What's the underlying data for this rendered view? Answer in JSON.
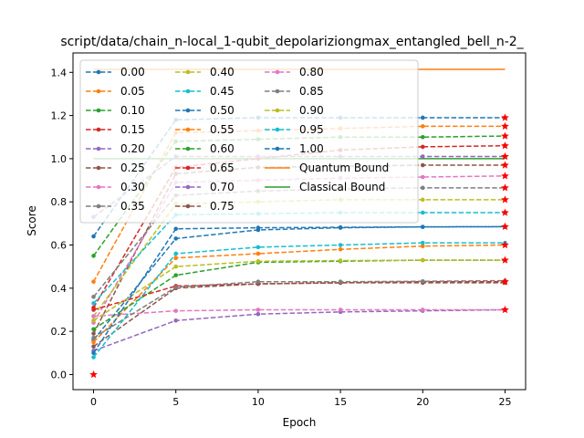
{
  "chart_data": {
    "type": "line",
    "title": "script/data/chain_n-local_1-qubit_depolariziongmax_entangled_bell_n-2_",
    "xlabel": "Epoch",
    "ylabel": "Score",
    "xlim": [
      -1.25,
      26.25
    ],
    "ylim": [
      -0.07,
      1.49
    ],
    "x": [
      0,
      5,
      10,
      15,
      20,
      25
    ],
    "xticks": [
      "0",
      "5",
      "10",
      "15",
      "20",
      "25"
    ],
    "yticks": [
      "0.0",
      "0.2",
      "0.4",
      "0.6",
      "0.8",
      "1.0",
      "1.2",
      "1.4"
    ],
    "grid": false,
    "legend_position": "upper-left, 3 columns",
    "series": [
      {
        "name": "0.00",
        "color": "#1f77b4",
        "values": [
          0.64,
          1.18,
          1.19,
          1.19,
          1.19,
          1.19
        ]
      },
      {
        "name": "0.05",
        "color": "#ff7f0e",
        "values": [
          0.43,
          1.12,
          1.13,
          1.14,
          1.15,
          1.15
        ]
      },
      {
        "name": "0.10",
        "color": "#2ca02c",
        "values": [
          0.55,
          1.08,
          1.09,
          1.1,
          1.1,
          1.105
        ]
      },
      {
        "name": "0.15",
        "color": "#d62728",
        "values": [
          0.31,
          0.96,
          1.0,
          1.04,
          1.055,
          1.06
        ]
      },
      {
        "name": "0.20",
        "color": "#9467bd",
        "values": [
          0.73,
          1.01,
          1.01,
          1.01,
          1.01,
          1.01
        ]
      },
      {
        "name": "0.25",
        "color": "#8c564b",
        "values": [
          0.19,
          0.93,
          0.96,
          0.965,
          0.97,
          0.97
        ]
      },
      {
        "name": "0.30",
        "color": "#e377c2",
        "values": [
          0.24,
          0.89,
          0.9,
          0.91,
          0.915,
          0.92
        ]
      },
      {
        "name": "0.35",
        "color": "#7f7f7f",
        "values": [
          0.36,
          0.83,
          0.85,
          0.86,
          0.865,
          0.865
        ]
      },
      {
        "name": "0.40",
        "color": "#bcbd22",
        "values": [
          0.27,
          0.79,
          0.8,
          0.81,
          0.81,
          0.81
        ]
      },
      {
        "name": "0.45",
        "color": "#17becf",
        "values": [
          0.33,
          0.74,
          0.745,
          0.75,
          0.75,
          0.75
        ]
      },
      {
        "name": "0.50",
        "color": "#1f77b4",
        "values": [
          0.16,
          0.63,
          0.67,
          0.68,
          0.684,
          0.685
        ]
      },
      {
        "name": "0.55",
        "color": "#ff7f0e",
        "values": [
          0.15,
          0.54,
          0.56,
          0.58,
          0.595,
          0.6
        ]
      },
      {
        "name": "0.60",
        "color": "#2ca02c",
        "values": [
          0.21,
          0.46,
          0.52,
          0.525,
          0.53,
          0.53
        ]
      },
      {
        "name": "0.65",
        "color": "#d62728",
        "values": [
          0.3,
          0.41,
          0.42,
          0.425,
          0.43,
          0.43
        ]
      },
      {
        "name": "0.70",
        "color": "#9467bd",
        "values": [
          0.11,
          0.25,
          0.28,
          0.29,
          0.295,
          0.3
        ]
      },
      {
        "name": "0.75",
        "color": "#8c564b",
        "values": [
          0.13,
          0.4,
          0.42,
          0.425,
          0.425,
          0.425
        ]
      },
      {
        "name": "0.80",
        "color": "#e377c2",
        "values": [
          0.27,
          0.295,
          0.3,
          0.3,
          0.3,
          0.3
        ]
      },
      {
        "name": "0.85",
        "color": "#7f7f7f",
        "values": [
          0.17,
          0.405,
          0.43,
          0.43,
          0.432,
          0.435
        ]
      },
      {
        "name": "0.90",
        "color": "#bcbd22",
        "values": [
          0.25,
          0.5,
          0.525,
          0.528,
          0.53,
          0.53
        ]
      },
      {
        "name": "0.95",
        "color": "#17becf",
        "values": [
          0.08,
          0.56,
          0.59,
          0.6,
          0.61,
          0.61
        ]
      },
      {
        "name": "1.00",
        "color": "#1f77b4",
        "values": [
          0.1,
          0.675,
          0.68,
          0.682,
          0.684,
          0.685
        ]
      }
    ],
    "final_markers": {
      "color": "#ff0000",
      "symbol": "star",
      "points": [
        [
          0,
          0.0
        ],
        [
          25,
          1.19
        ],
        [
          25,
          1.15
        ],
        [
          25,
          1.105
        ],
        [
          25,
          1.06
        ],
        [
          25,
          1.01
        ],
        [
          25,
          0.97
        ],
        [
          25,
          0.92
        ],
        [
          25,
          0.865
        ],
        [
          25,
          0.81
        ],
        [
          25,
          0.75
        ],
        [
          25,
          0.685
        ],
        [
          25,
          0.6
        ],
        [
          25,
          0.53
        ],
        [
          25,
          0.43
        ],
        [
          25,
          0.3
        ]
      ]
    },
    "reference_lines": [
      {
        "name": "Quantum Bound",
        "color": "#ff7f0e",
        "value": 1.414,
        "x_range": [
          0,
          25
        ]
      },
      {
        "name": "Classical Bound",
        "color": "#2ca02c",
        "value": 1.0,
        "x_range": [
          0,
          25
        ]
      }
    ]
  }
}
